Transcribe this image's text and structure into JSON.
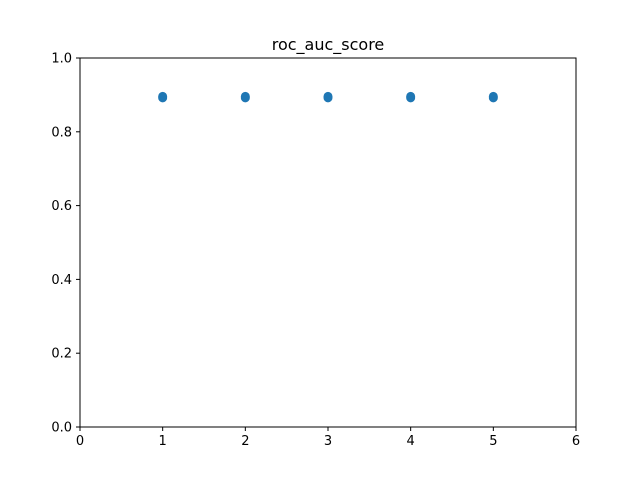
{
  "chart_data": {
    "type": "scatter",
    "title": "roc_auc_score",
    "xlabel": "",
    "ylabel": "",
    "xlim": [
      0,
      6
    ],
    "ylim": [
      0.0,
      1.0
    ],
    "x_ticks": [
      "0",
      "1",
      "2",
      "3",
      "4",
      "5",
      "6"
    ],
    "y_ticks": [
      "0.0",
      "0.2",
      "0.4",
      "0.6",
      "0.8",
      "1.0"
    ],
    "grid": false,
    "series": [
      {
        "x": [
          1,
          1,
          2,
          2,
          3,
          3,
          4,
          4,
          5,
          5
        ],
        "y": [
          0.892,
          0.896,
          0.892,
          0.896,
          0.892,
          0.896,
          0.892,
          0.896,
          0.892,
          0.896
        ],
        "color": "#1f77b4"
      }
    ]
  }
}
